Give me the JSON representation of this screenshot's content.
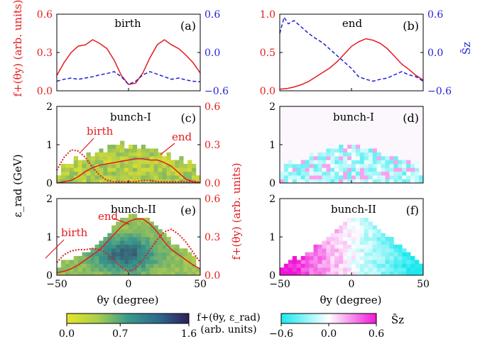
{
  "colors": {
    "red": "#e41a1c",
    "blue": "#1f1fd8",
    "cmap_lo": "#e8e42a",
    "cmap_mid": "#3b9a8c",
    "cmap_hi": "#2f1f5a",
    "spin_neg": "#17e8ee",
    "spin_pos": "#f114d8"
  },
  "chart_data": [
    {
      "panel": "(a)",
      "type": "line",
      "annotation": "birth",
      "ylabel": "f+(θy) (arb. units)",
      "ylim": [
        0,
        0.6
      ],
      "yticks": [
        "0.0",
        "0.3",
        "0.6"
      ],
      "y2label": "",
      "y2lim": [
        -0.6,
        0.6
      ],
      "y2ticks": [
        "−0.6",
        "0.0",
        "0.6"
      ],
      "xlim": [
        -50,
        50
      ],
      "series": [
        {
          "axis": "left",
          "color": "red",
          "style": "solid",
          "x": [
            -50,
            -45,
            -40,
            -35,
            -30,
            -25,
            -20,
            -15,
            -10,
            -5,
            0,
            5,
            10,
            15,
            20,
            25,
            30,
            35,
            40,
            45,
            50
          ],
          "y": [
            0.12,
            0.22,
            0.3,
            0.35,
            0.36,
            0.4,
            0.37,
            0.33,
            0.24,
            0.12,
            0.05,
            0.06,
            0.14,
            0.26,
            0.36,
            0.4,
            0.36,
            0.33,
            0.28,
            0.22,
            0.14
          ]
        },
        {
          "axis": "right",
          "color": "blue",
          "style": "dashed",
          "x": [
            -50,
            -45,
            -40,
            -35,
            -30,
            -25,
            -20,
            -15,
            -10,
            -5,
            0,
            5,
            10,
            15,
            20,
            25,
            30,
            35,
            40,
            45,
            50
          ],
          "y": [
            -0.45,
            -0.42,
            -0.4,
            -0.42,
            -0.4,
            -0.38,
            -0.35,
            -0.33,
            -0.3,
            -0.38,
            -0.5,
            -0.45,
            -0.35,
            -0.3,
            -0.34,
            -0.38,
            -0.42,
            -0.4,
            -0.43,
            -0.45,
            -0.46
          ]
        }
      ]
    },
    {
      "panel": "(b)",
      "type": "line",
      "annotation": "end",
      "ylim": [
        0,
        1.0
      ],
      "yticks": [
        "0.0",
        "0.5",
        "1.0"
      ],
      "y2label": "S̄z",
      "y2lim": [
        -0.6,
        0.6
      ],
      "y2ticks": [
        "−0.6",
        "0.0",
        "0.6"
      ],
      "xlim": [
        -50,
        50
      ],
      "series": [
        {
          "axis": "left",
          "color": "red",
          "style": "solid",
          "x": [
            -50,
            -45,
            -40,
            -35,
            -30,
            -25,
            -20,
            -15,
            -10,
            -5,
            0,
            5,
            10,
            15,
            20,
            25,
            30,
            35,
            40,
            45,
            50
          ],
          "y": [
            0.02,
            0.03,
            0.05,
            0.08,
            0.12,
            0.18,
            0.24,
            0.3,
            0.38,
            0.48,
            0.58,
            0.64,
            0.68,
            0.66,
            0.62,
            0.55,
            0.45,
            0.35,
            0.28,
            0.2,
            0.14
          ]
        },
        {
          "axis": "right",
          "color": "blue",
          "style": "dashed",
          "x": [
            -50,
            -47,
            -44,
            -40,
            -35,
            -30,
            -25,
            -20,
            -15,
            -10,
            -5,
            0,
            5,
            10,
            15,
            20,
            25,
            30,
            35,
            40,
            45,
            50
          ],
          "y": [
            0.3,
            0.55,
            0.45,
            0.5,
            0.4,
            0.3,
            0.22,
            0.15,
            0.05,
            -0.05,
            -0.15,
            -0.25,
            -0.38,
            -0.42,
            -0.45,
            -0.42,
            -0.4,
            -0.35,
            -0.3,
            -0.35,
            -0.38,
            -0.45
          ]
        }
      ]
    },
    {
      "panel": "(c)",
      "type": "heatmap",
      "annotation": "bunch-I",
      "ylabel": "ε_rad (GeV)",
      "ylim": [
        0,
        2
      ],
      "yticks": [
        "0",
        "1",
        "2"
      ],
      "y2label": "",
      "y2lim": [
        0,
        0.6
      ],
      "y2ticks": [
        "0.0",
        "0.3",
        "0.6"
      ],
      "xlim": [
        -50,
        50
      ],
      "labels": {
        "birth": "birth",
        "end": "end"
      },
      "series": [
        {
          "name": "birth",
          "axis": "right",
          "color": "red",
          "style": "dotted",
          "x": [
            -50,
            -45,
            -40,
            -35,
            -30,
            -25,
            -20,
            -15,
            -10,
            -5,
            0,
            5,
            10,
            15,
            20,
            25,
            30,
            35,
            40,
            45,
            50
          ],
          "y": [
            0.1,
            0.2,
            0.26,
            0.25,
            0.2,
            0.12,
            0.06,
            0.02,
            0.01,
            0.01,
            0.01,
            0.01,
            0.02,
            0.02,
            0.01,
            0.01,
            0.01,
            0.01,
            0.01,
            0.01,
            0.01
          ]
        },
        {
          "name": "end",
          "axis": "right",
          "color": "red",
          "style": "solid",
          "x": [
            -50,
            -45,
            -40,
            -35,
            -30,
            -25,
            -20,
            -15,
            -10,
            -5,
            0,
            5,
            10,
            15,
            20,
            25,
            30,
            35,
            40,
            45,
            50
          ],
          "y": [
            0.0,
            0.01,
            0.02,
            0.05,
            0.09,
            0.12,
            0.14,
            0.15,
            0.16,
            0.17,
            0.18,
            0.19,
            0.19,
            0.18,
            0.18,
            0.16,
            0.13,
            0.08,
            0.03,
            0.01,
            0.0
          ]
        }
      ]
    },
    {
      "panel": "(d)",
      "type": "heatmap",
      "annotation": "bunch-I",
      "ylim": [
        0,
        2
      ],
      "yticks": [
        "0",
        "1",
        "2"
      ],
      "xlim": [
        -50,
        50
      ]
    },
    {
      "panel": "(e)",
      "type": "heatmap",
      "annotation": "bunch-II",
      "ylabel": "ε_rad (GeV)",
      "ylim": [
        0,
        2
      ],
      "yticks": [
        "0",
        "1",
        "2"
      ],
      "y2label": "f+(θy) (arb. units)",
      "y2lim": [
        0,
        0.6
      ],
      "y2ticks": [
        "0.0",
        "0.3",
        "0.6"
      ],
      "xlim": [
        -50,
        50
      ],
      "xticks": [
        "−50",
        "0",
        "50"
      ],
      "xlabel": "θy (degree)",
      "labels": {
        "birth": "birth",
        "end": "end"
      },
      "series": [
        {
          "name": "birth",
          "axis": "right",
          "color": "red",
          "style": "dotted",
          "x": [
            -50,
            -45,
            -40,
            -35,
            -30,
            -25,
            -20,
            -15,
            -10,
            -5,
            0,
            5,
            10,
            15,
            20,
            25,
            30,
            35,
            40,
            45,
            50
          ],
          "y": [
            0.1,
            0.16,
            0.19,
            0.2,
            0.2,
            0.21,
            0.2,
            0.17,
            0.12,
            0.06,
            0.03,
            0.05,
            0.12,
            0.2,
            0.28,
            0.34,
            0.36,
            0.32,
            0.26,
            0.18,
            0.1
          ]
        },
        {
          "name": "end",
          "axis": "right",
          "color": "red",
          "style": "solid",
          "x": [
            -50,
            -45,
            -40,
            -35,
            -30,
            -25,
            -20,
            -15,
            -10,
            -5,
            0,
            5,
            10,
            15,
            20,
            25,
            30,
            35,
            40,
            45,
            50
          ],
          "y": [
            0.02,
            0.03,
            0.05,
            0.08,
            0.12,
            0.16,
            0.2,
            0.26,
            0.32,
            0.38,
            0.42,
            0.44,
            0.44,
            0.4,
            0.34,
            0.26,
            0.2,
            0.16,
            0.12,
            0.08,
            0.05
          ]
        }
      ]
    },
    {
      "panel": "(f)",
      "type": "heatmap",
      "annotation": "bunch-II",
      "ylim": [
        0,
        2
      ],
      "yticks": [
        "0",
        "1",
        "2"
      ],
      "xlim": [
        -50,
        50
      ],
      "xticks": [
        "−50",
        "0",
        "50"
      ],
      "xlabel": "θy (degree)"
    }
  ],
  "colorbars": [
    {
      "label_line1": "f+(θy, ε_rad)",
      "label_line2": "(arb. units)",
      "ticks": [
        "0.0",
        "0.7",
        "1.6"
      ]
    },
    {
      "label": "S̄z",
      "ticks": [
        "−0.6",
        "0.0",
        "0.6"
      ]
    }
  ],
  "ylabel_right_a": "f+(θy) (arb. units)"
}
